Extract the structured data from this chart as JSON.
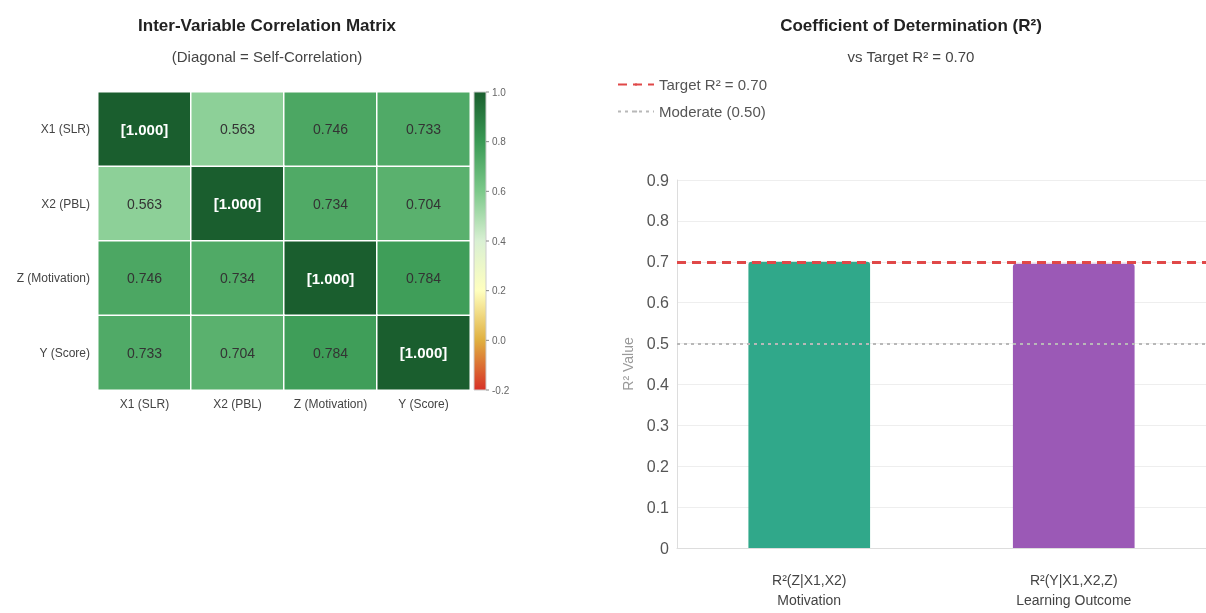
{
  "chart_data": [
    {
      "type": "heatmap",
      "title": "Inter-Variable Correlation Matrix",
      "subtitle": "(Diagonal = Self-Correlation)",
      "categories": [
        "X1 (SLR)",
        "X2 (PBL)",
        "Z (Motivation)",
        "Y (Score)"
      ],
      "y_categories": [
        "X1 (SLR)",
        "X2 (PBL)",
        "Z (Motivation)",
        "Y (Score)"
      ],
      "cells": [
        [
          1.0,
          0.563,
          0.746,
          0.733
        ],
        [
          0.563,
          1.0,
          0.734,
          0.704
        ],
        [
          0.746,
          0.734,
          1.0,
          0.784
        ],
        [
          0.733,
          0.704,
          0.784,
          1.0
        ]
      ],
      "cell_labels": [
        [
          "[1.000]",
          "0.563",
          "0.746",
          "0.733"
        ],
        [
          "0.563",
          "[1.000]",
          "0.734",
          "0.704"
        ],
        [
          "0.746",
          "0.734",
          "[1.000]",
          "0.784"
        ],
        [
          "0.733",
          "0.704",
          "0.784",
          "[1.000]"
        ]
      ],
      "clim": [
        -0.2,
        1.0
      ],
      "cticks": [
        {
          "value": -0.2,
          "label": "-0.2"
        },
        {
          "value": 0,
          "label": "0.0"
        },
        {
          "value": 0.2,
          "label": "0.2"
        },
        {
          "value": 0.4,
          "label": "0.4"
        },
        {
          "value": 0.6,
          "label": "0.6"
        },
        {
          "value": 0.8,
          "label": "0.8"
        },
        {
          "value": 1.0,
          "label": "1.0"
        }
      ]
    },
    {
      "type": "bar",
      "title": "Coefficient of Determination (R²)",
      "subtitle": "vs Target R² = 0.70",
      "ylabel": "R² Value",
      "categories": [
        "R²(Z|X1,X2)\nMotivation",
        "R²(Y|X1,X2,Z)\nLearning Outcome"
      ],
      "values": [
        0.7,
        0.695
      ],
      "colors": [
        "#30a88a",
        "#9b59b6"
      ],
      "ylim": [
        0,
        0.9
      ],
      "yticks": [
        0,
        0.1,
        0.2,
        0.3,
        0.4,
        0.5,
        0.6,
        0.7,
        0.8,
        0.9
      ],
      "grid": "y",
      "legend": "top left",
      "ref_lines": [
        {
          "axis": "y",
          "value": 0.7,
          "label": "Target R² = 0.70",
          "color": "#e04848",
          "line_style": "dashed"
        },
        {
          "axis": "y",
          "value": 0.5,
          "label": "Moderate (0.50)",
          "color": "#b8b8b8",
          "line_style": "dotted"
        }
      ]
    }
  ]
}
